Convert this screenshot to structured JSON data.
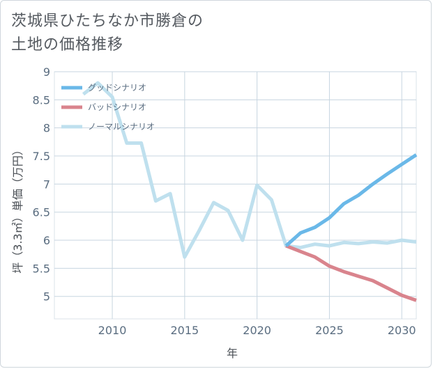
{
  "chart_data": {
    "type": "line",
    "title_lines": [
      "茨城県ひたちなか市勝倉の",
      "土地の価格推移"
    ],
    "xlabel": "年",
    "ylabel": "坪（3.3㎡）単価（万円）",
    "xlim": [
      2006,
      2031
    ],
    "ylim": [
      4.6,
      9
    ],
    "x_ticks": [
      2010,
      2015,
      2020,
      2025,
      2030
    ],
    "y_ticks": [
      5,
      5.5,
      6,
      6.5,
      7,
      7.5,
      8,
      8.5,
      9
    ],
    "y_tick_labels": [
      "5",
      "5.5",
      "6",
      "6.5",
      "7",
      "7.5",
      "8",
      "8.5",
      "9"
    ],
    "grid": true,
    "legend_position": "top-left",
    "series": [
      {
        "name": "グッドシナリオ",
        "color": "#6ab8e8",
        "points": [
          [
            2022,
            5.9
          ],
          [
            2023,
            6.13
          ],
          [
            2024,
            6.23
          ],
          [
            2025,
            6.4
          ],
          [
            2026,
            6.65
          ],
          [
            2027,
            6.8
          ],
          [
            2028,
            7.0
          ],
          [
            2029,
            7.18
          ],
          [
            2030,
            7.35
          ],
          [
            2031,
            7.52
          ]
        ]
      },
      {
        "name": "バッドシナリオ",
        "color": "#d9848d",
        "points": [
          [
            2022,
            5.9
          ],
          [
            2023,
            5.8
          ],
          [
            2024,
            5.7
          ],
          [
            2025,
            5.54
          ],
          [
            2026,
            5.44
          ],
          [
            2027,
            5.36
          ],
          [
            2028,
            5.28
          ],
          [
            2029,
            5.15
          ],
          [
            2030,
            5.02
          ],
          [
            2031,
            4.93
          ]
        ]
      },
      {
        "name": "ノーマルシナリオ",
        "color": "#bfe0ee",
        "points": [
          [
            2008,
            8.6
          ],
          [
            2009,
            8.8
          ],
          [
            2010,
            8.55
          ],
          [
            2011,
            7.73
          ],
          [
            2012,
            7.73
          ],
          [
            2013,
            6.7
          ],
          [
            2014,
            6.83
          ],
          [
            2015,
            5.7
          ],
          [
            2016,
            6.17
          ],
          [
            2017,
            6.67
          ],
          [
            2018,
            6.53
          ],
          [
            2019,
            6.0
          ],
          [
            2020,
            6.98
          ],
          [
            2021,
            6.72
          ],
          [
            2022,
            5.9
          ],
          [
            2023,
            5.87
          ],
          [
            2024,
            5.93
          ],
          [
            2025,
            5.9
          ],
          [
            2026,
            5.96
          ],
          [
            2027,
            5.94
          ],
          [
            2028,
            5.97
          ],
          [
            2029,
            5.95
          ],
          [
            2030,
            6.0
          ],
          [
            2031,
            5.97
          ]
        ]
      }
    ]
  }
}
